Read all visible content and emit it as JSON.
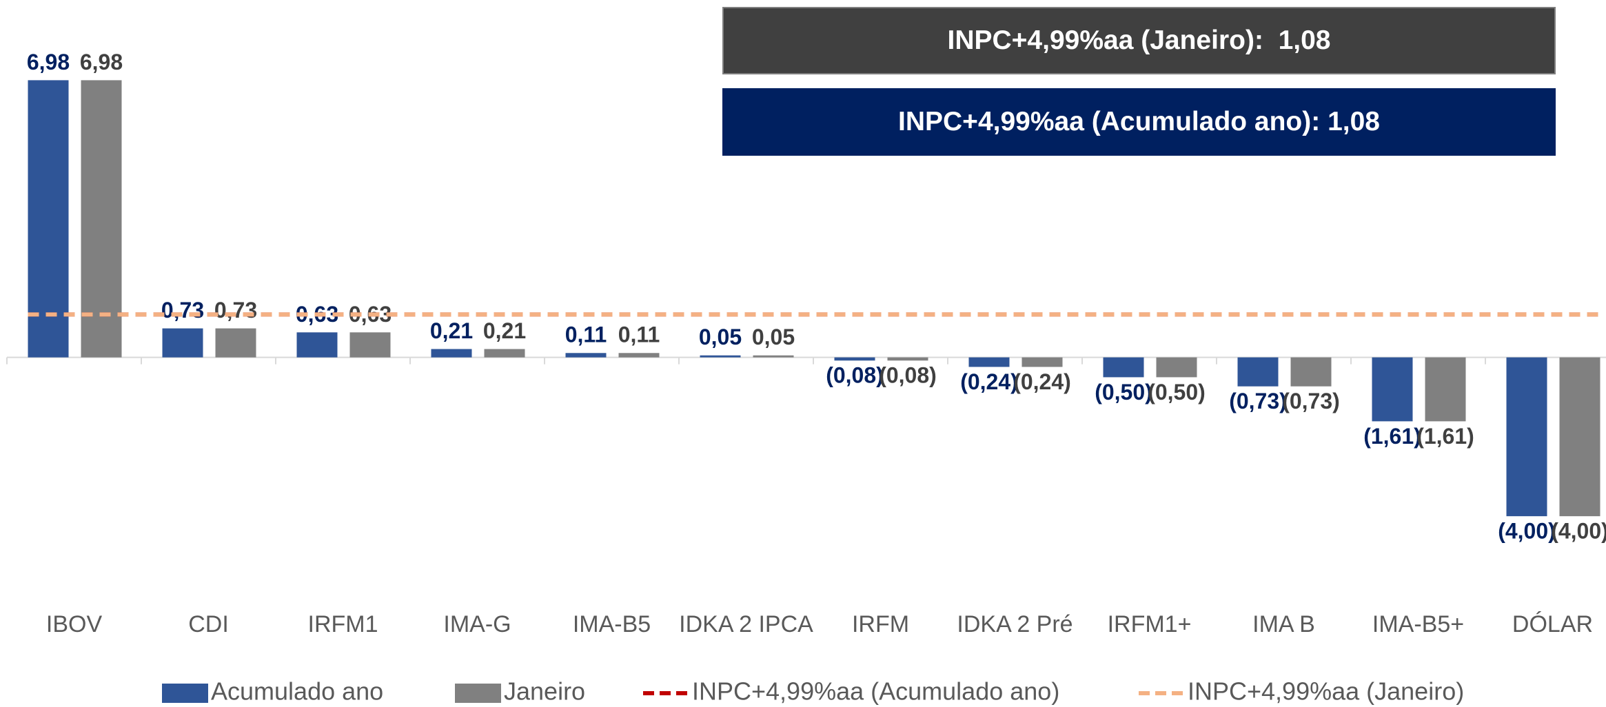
{
  "chart_data": {
    "type": "bar",
    "categories": [
      "IBOV",
      "CDI",
      "IRFM1",
      "IMA-G",
      "IMA-B5",
      "IDKA 2 IPCA",
      "IRFM",
      "IDKA 2 Pré",
      "IRFM1+",
      "IMA B",
      "IMA-B5+",
      "DÓLAR"
    ],
    "series": [
      {
        "name": "Acumulado ano",
        "type": "bar",
        "color": "#2f5597",
        "label_color": "#002060",
        "values": [
          6.98,
          0.73,
          0.63,
          0.21,
          0.11,
          0.05,
          -0.08,
          -0.24,
          -0.5,
          -0.73,
          -1.61,
          -4.0
        ],
        "value_labels": [
          "6,98",
          "0,73",
          "0,63",
          "0,21",
          "0,11",
          "0,05",
          "(0,08)",
          "(0,24)",
          "(0,50)",
          "(0,73)",
          "(1,61)",
          "(4,00)"
        ]
      },
      {
        "name": "Janeiro",
        "type": "bar",
        "color": "#808080",
        "label_color": "#404040",
        "values": [
          6.98,
          0.73,
          0.63,
          0.21,
          0.11,
          0.05,
          -0.08,
          -0.24,
          -0.5,
          -0.73,
          -1.61,
          -4.0
        ],
        "value_labels": [
          "6,98",
          "0,73",
          "0,63",
          "0,21",
          "0,11",
          "0,05",
          "(0,08)",
          "(0,24)",
          "(0,50)",
          "(0,73)",
          "(1,61)",
          "(4,00)"
        ]
      },
      {
        "name": "INPC+4,99%aa (Acumulado ano)",
        "type": "line",
        "color": "#c00000",
        "values": [
          1.08,
          1.08,
          1.08,
          1.08,
          1.08,
          1.08,
          1.08,
          1.08,
          1.08,
          1.08,
          1.08,
          1.08
        ]
      },
      {
        "name": "INPC+4,99%aa (Janeiro)",
        "type": "line",
        "color": "#f4b183",
        "values": [
          1.08,
          1.08,
          1.08,
          1.08,
          1.08,
          1.08,
          1.08,
          1.08,
          1.08,
          1.08,
          1.08,
          1.08
        ]
      }
    ],
    "annotations": [
      "INPC+4,99%aa (Janeiro):  1,08",
      "INPC+4,99%aa (Acumulado ano): 1,08"
    ],
    "ylim": [
      -7,
      9
    ],
    "legend": "bottom"
  }
}
